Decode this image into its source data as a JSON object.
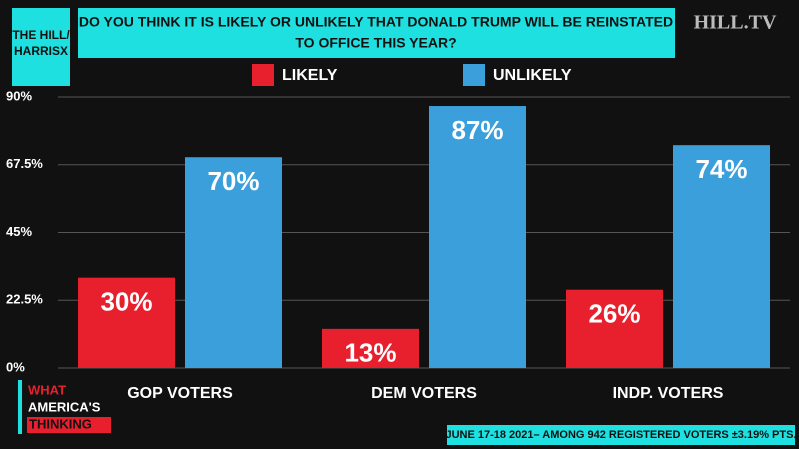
{
  "header": {
    "source": [
      "THE HILL/",
      "HARRISX"
    ],
    "brand": "HILL.TV"
  },
  "chart_data": {
    "type": "bar",
    "title": [
      "DO YOU THINK IT IS LIKELY OR UNLIKELY THAT DONALD TRUMP WILL BE REINSTATED",
      "TO OFFICE THIS YEAR?"
    ],
    "categories": [
      "GOP VOTERS",
      "DEM VOTERS",
      "INDP. VOTERS"
    ],
    "series": [
      {
        "name": "LIKELY",
        "color": "#e8202e",
        "values": [
          30,
          13,
          26
        ],
        "value_labels": [
          "30%",
          "13%",
          "26%"
        ]
      },
      {
        "name": "UNLIKELY",
        "color": "#3b9fdc",
        "values": [
          70,
          87,
          74
        ],
        "value_labels": [
          "70%",
          "87%",
          "74%"
        ]
      }
    ],
    "ylim": [
      0,
      90
    ],
    "yticks": [
      {
        "value": 0,
        "label": "0%"
      },
      {
        "value": 22.5,
        "label": "22.5%"
      },
      {
        "value": 45,
        "label": "45%"
      },
      {
        "value": 67.5,
        "label": "67.5%"
      },
      {
        "value": 90,
        "label": "90%"
      }
    ],
    "grid": true
  },
  "footer": {
    "logo": [
      "WHAT",
      "AMERICA'S",
      "THINKING"
    ],
    "note": "JUNE 17-18 2021– AMONG 942 REGISTERED VOTERS ±3.19% PTS."
  }
}
